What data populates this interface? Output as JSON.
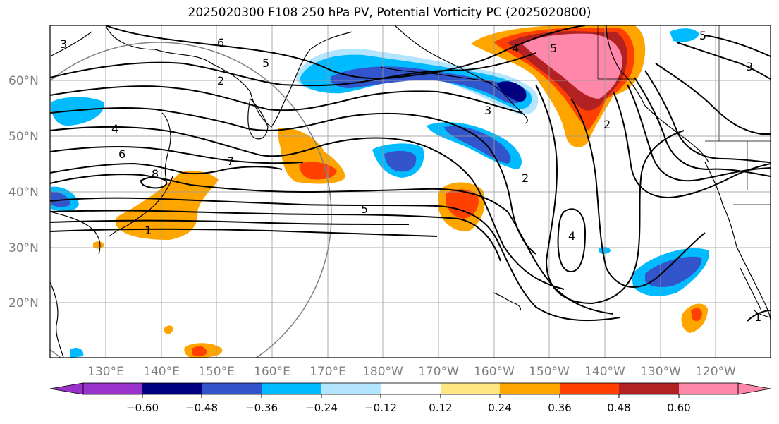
{
  "title": "2025020300 F108 250 hPa PV, Potential Vorticity PC (2025020800)",
  "lat_labels": [
    "60°N",
    "50°N",
    "40°N",
    "30°N",
    "20°N"
  ],
  "lon_labels": [
    "130°E",
    "140°E",
    "150°E",
    "160°E",
    "170°E",
    "180°W",
    "170°W",
    "160°W",
    "150°W",
    "140°W",
    "130°W",
    "120°W"
  ],
  "colorbar": {
    "ticks": [
      "−0.60",
      "−0.48",
      "−0.36",
      "−0.24",
      "−0.12",
      "0.12",
      "0.24",
      "0.36",
      "0.48",
      "0.60"
    ],
    "colors": [
      "#9933cc",
      "#000080",
      "#3355cc",
      "#00bbff",
      "#b3e5ff",
      "#ffffff",
      "#ffe680",
      "#ffa500",
      "#ff4000",
      "#b22222",
      "#ff88aa"
    ]
  },
  "contour_labels": [
    "6",
    "5",
    "4",
    "3",
    "2",
    "1",
    "7",
    "8",
    "5",
    "4",
    "5",
    "2",
    "4",
    "3",
    "2",
    "1",
    "6",
    "5",
    "3"
  ]
}
